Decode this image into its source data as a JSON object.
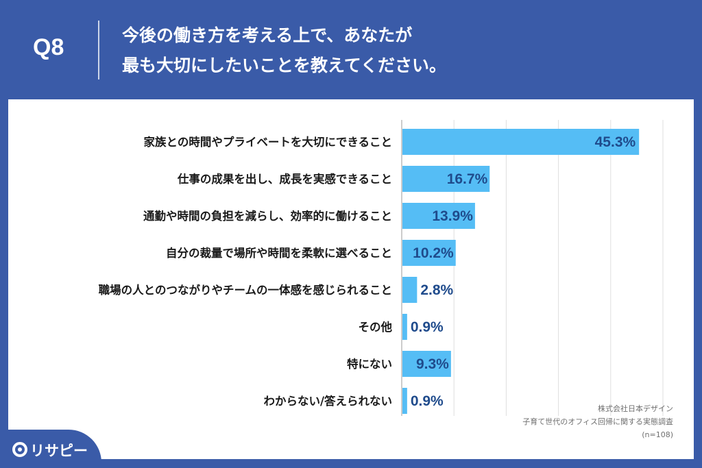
{
  "header": {
    "question": "Q8",
    "title_line1": "今後の働き方を考える上で、あなたが",
    "title_line2": "最も大切にしたいことを教えてください。"
  },
  "chart_data": {
    "type": "bar",
    "orientation": "horizontal",
    "categories": [
      "家族との時間やプライベートを大切にできること",
      "仕事の成果を出し、成長を実感できること",
      "通勤や時間の負担を減らし、効率的に働けること",
      "自分の裁量で場所や時間を柔軟に選べること",
      "職場の人とのつながりやチームの一体感を感じられること",
      "その他",
      "特にない",
      "わからない/答えられない"
    ],
    "values": [
      45.3,
      16.7,
      13.9,
      10.2,
      2.8,
      0.9,
      9.3,
      0.9
    ],
    "value_labels": [
      "45.3%",
      "16.7%",
      "13.9%",
      "10.2%",
      "2.8%",
      "0.9%",
      "9.3%",
      "0.9%"
    ],
    "xlim": [
      0,
      50
    ],
    "grid": true,
    "bar_color": "#55bdf5",
    "value_label_color": "#1f4b8c"
  },
  "source": {
    "company": "株式会社日本デザイン",
    "survey": "子育て世代のオフィス回帰に関する実態調査",
    "sample": "(n=108)"
  },
  "brand": {
    "name": "リサピー",
    "icon": "magnifier-icon",
    "color": "#3a5ba8"
  }
}
